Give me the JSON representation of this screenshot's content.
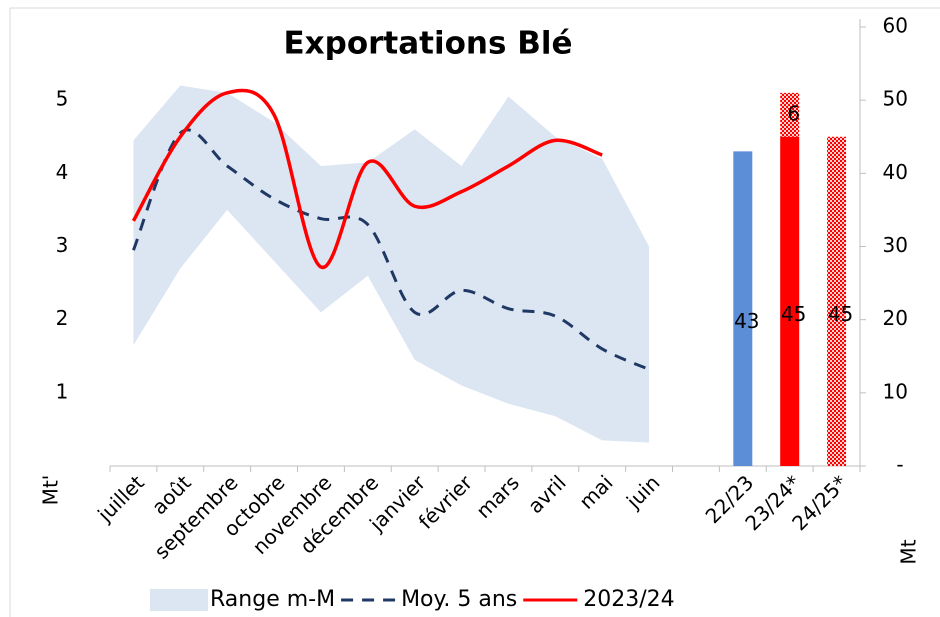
{
  "chart_data": {
    "type": "line",
    "title": "Exportations Blé",
    "ylabel": "Mt'",
    "y2label": "Mt",
    "categories": [
      "juillet",
      "août",
      "septembre",
      "octobre",
      "novembre",
      "décembre",
      "janvier",
      "février",
      "mars",
      "avril",
      "mai",
      "juin",
      null,
      "22/23",
      "23/24*",
      "24/25*"
    ],
    "ylim": [
      0,
      6
    ],
    "yticks": [
      1,
      2,
      3,
      4,
      5
    ],
    "y2lim": [
      0,
      60
    ],
    "y2ticks": [
      {
        "value": 0,
        "label": "-"
      },
      10,
      20,
      30,
      40,
      50,
      60
    ],
    "series": [
      {
        "name": "Range m-M",
        "color": "#dce6f2",
        "low": [
          1.65,
          2.7,
          3.5,
          2.8,
          2.1,
          2.6,
          1.45,
          1.1,
          0.85,
          0.68,
          0.35,
          0.32,
          null,
          null,
          null,
          null
        ],
        "high": [
          4.45,
          5.2,
          5.1,
          4.7,
          4.1,
          4.15,
          4.6,
          4.1,
          5.05,
          4.5,
          4.2,
          3.0,
          null,
          null,
          null,
          null
        ]
      },
      {
        "name": "Moy. 5 ans",
        "color": "#1f3864",
        "dashed": true,
        "values": [
          2.95,
          4.55,
          4.1,
          3.65,
          3.38,
          3.3,
          2.1,
          2.4,
          2.15,
          2.05,
          1.6,
          1.32,
          null,
          null,
          null,
          null
        ]
      },
      {
        "name": "2023/24",
        "color": "#ff0000",
        "values": [
          3.35,
          4.5,
          5.1,
          4.8,
          2.72,
          4.15,
          3.55,
          3.75,
          4.1,
          4.45,
          4.25,
          null,
          null,
          null,
          null,
          null
        ]
      }
    ],
    "bar_series": [
      {
        "axis": "y2",
        "color": "#5b8ed6",
        "hatched": false,
        "values": [
          null,
          null,
          null,
          null,
          null,
          null,
          null,
          null,
          null,
          null,
          null,
          null,
          null,
          43,
          null,
          null
        ]
      },
      {
        "axis": "y2",
        "color": "#ff0000",
        "hatched": false,
        "values": [
          null,
          null,
          null,
          null,
          null,
          null,
          null,
          null,
          null,
          null,
          null,
          null,
          null,
          null,
          45,
          null
        ]
      },
      {
        "axis": "y2",
        "color": "#ff0000",
        "hatched": true,
        "values": [
          null,
          null,
          null,
          null,
          null,
          null,
          null,
          null,
          null,
          null,
          null,
          null,
          null,
          null,
          6,
          45
        ]
      }
    ]
  }
}
